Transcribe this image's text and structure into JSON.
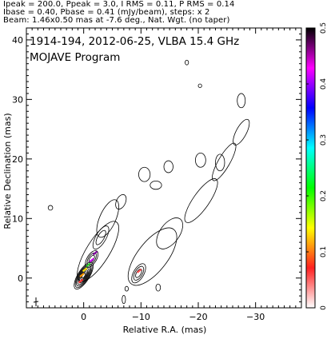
{
  "header": {
    "line1": "Ipeak = 200.0, Ppeak = 3.0, I RMS = 0.11, P RMS = 0.14",
    "line2": "Ibase = 0.40, Pbase = 0.41 (mJy/beam), steps: x 2",
    "line3": "Beam: 1.46x0.50 mas at -7.6 deg., Nat. Wgt. (no taper)"
  },
  "chart_data": {
    "type": "contour",
    "title": "1914-194, 2012-06-25, VLBA 15.4 GHz",
    "subtitle": "MOJAVE Program",
    "xlabel": "Relative R.A. (mas)",
    "ylabel": "Relative Declination (mas)",
    "xlim": [
      10,
      -38
    ],
    "ylim": [
      -5,
      42
    ],
    "x_reversed": true,
    "x_ticks": [
      0,
      -10,
      -20,
      -30
    ],
    "x_tick_labels": [
      "0",
      "−10",
      "−20",
      "−30"
    ],
    "y_ticks": [
      0,
      10,
      20,
      30,
      40
    ],
    "y_tick_labels": [
      "0",
      "10",
      "20",
      "30",
      "40"
    ],
    "colorbar": {
      "range": [
        0,
        0.5
      ],
      "ticks": [
        0,
        0.1,
        0.2,
        0.3,
        0.4,
        0.5
      ],
      "tick_labels": [
        "0",
        "0.1",
        "0.2",
        "0.3",
        "0.4",
        "0.5"
      ],
      "colors": [
        "#ffffff",
        "#ff2020",
        "#ffff00",
        "#00ff00",
        "#00ffff",
        "#0000ff",
        "#ff00ff",
        "#000000"
      ]
    },
    "stokes_i_base_mjy": 0.4,
    "contour_step": 2,
    "beam": {
      "major_mas": 1.46,
      "minor_mas": 0.5,
      "pa_deg": -7.6
    },
    "polarization_segments": [
      {
        "x": 0.5,
        "y": -0.5,
        "color": "#ff3030"
      },
      {
        "x": 0.3,
        "y": 0.5,
        "color": "#ff9a00"
      },
      {
        "x": -0.2,
        "y": 1.4,
        "color": "#ffe000"
      },
      {
        "x": -0.8,
        "y": 2.2,
        "color": "#30d030"
      },
      {
        "x": -1.4,
        "y": 3.0,
        "color": "#d400ff"
      },
      {
        "x": -2.0,
        "y": 4.2,
        "color": "#8000a0"
      },
      {
        "x": -9.7,
        "y": 1.2,
        "color": "#ff5050"
      }
    ],
    "contour_sets": [
      {
        "name": "core",
        "cx": 0.0,
        "cy": 0.4,
        "rx": 1.0,
        "ry": 2.6,
        "rot": 32,
        "levels": 8
      },
      {
        "name": "knot-a",
        "cx": -1.4,
        "cy": 3.2,
        "rx": 0.8,
        "ry": 1.6,
        "rot": 32,
        "levels": 3
      },
      {
        "name": "knot-b",
        "cx": -3.0,
        "cy": 6.8,
        "rx": 0.9,
        "ry": 2.2,
        "rot": 30,
        "levels": 2
      },
      {
        "name": "outer-left-jet",
        "cx": -2.5,
        "cy": 4.5,
        "rx": 2.0,
        "ry": 5.8,
        "rot": 32,
        "levels": 1
      },
      {
        "name": "left-plume",
        "cx": -4.2,
        "cy": 10.0,
        "rx": 1.4,
        "ry": 3.4,
        "rot": 24,
        "levels": 1
      },
      {
        "name": "left-upper",
        "cx": -6.5,
        "cy": 12.8,
        "rx": 0.8,
        "ry": 1.3,
        "rot": 25,
        "levels": 1
      },
      {
        "name": "right-core",
        "cx": -9.6,
        "cy": 0.8,
        "rx": 0.9,
        "ry": 1.8,
        "rot": 30,
        "levels": 3
      },
      {
        "name": "right-jet",
        "cx": -12.0,
        "cy": 3.6,
        "rx": 2.6,
        "ry": 5.8,
        "rot": 38,
        "levels": 1
      },
      {
        "name": "right-mid",
        "cx": -15.0,
        "cy": 7.5,
        "rx": 1.7,
        "ry": 3.0,
        "rot": 36,
        "levels": 1
      },
      {
        "name": "right-long",
        "cx": -20.5,
        "cy": 13.0,
        "rx": 1.4,
        "ry": 4.4,
        "rot": 35,
        "levels": 1
      },
      {
        "name": "right-upper",
        "cx": -24.5,
        "cy": 19.5,
        "rx": 1.0,
        "ry": 3.6,
        "rot": 30,
        "levels": 1
      },
      {
        "name": "right-top",
        "cx": -27.5,
        "cy": 24.5,
        "rx": 0.9,
        "ry": 2.4,
        "rot": 28,
        "levels": 1
      },
      {
        "name": "cloud-1",
        "cx": -10.6,
        "cy": 17.4,
        "rx": 1.0,
        "ry": 1.2,
        "rot": 0,
        "levels": 1
      },
      {
        "name": "cloud-2",
        "cx": -12.6,
        "cy": 15.6,
        "rx": 1.0,
        "ry": 0.7,
        "rot": 0,
        "levels": 1
      },
      {
        "name": "cloud-3",
        "cx": -14.8,
        "cy": 18.7,
        "rx": 0.8,
        "ry": 1.0,
        "rot": 0,
        "levels": 1
      },
      {
        "name": "cloud-4",
        "cx": -20.4,
        "cy": 19.8,
        "rx": 0.9,
        "ry": 1.2,
        "rot": 0,
        "levels": 1
      },
      {
        "name": "cloud-5",
        "cx": -23.8,
        "cy": 19.4,
        "rx": 0.8,
        "ry": 1.4,
        "rot": 0,
        "levels": 1
      },
      {
        "name": "cloud-6",
        "cx": -27.5,
        "cy": 29.8,
        "rx": 0.7,
        "ry": 1.2,
        "rot": 0,
        "levels": 1
      },
      {
        "name": "blob-bl-1",
        "cx": -13.0,
        "cy": -1.6,
        "rx": 0.4,
        "ry": 0.6,
        "rot": 0,
        "levels": 1
      },
      {
        "name": "blob-bl-2",
        "cx": -7.0,
        "cy": -3.6,
        "rx": 0.3,
        "ry": 0.7,
        "rot": 0,
        "levels": 1
      },
      {
        "name": "blob-bl-3",
        "cx": -7.5,
        "cy": -1.8,
        "rx": 0.3,
        "ry": 0.4,
        "rot": 0,
        "levels": 1
      },
      {
        "name": "blob-left",
        "cx": 5.8,
        "cy": 11.8,
        "rx": 0.4,
        "ry": 0.4,
        "rot": 0,
        "levels": 1
      },
      {
        "name": "blob-top",
        "cx": -18.0,
        "cy": 36.2,
        "rx": 0.3,
        "ry": 0.4,
        "rot": 0,
        "levels": 1
      },
      {
        "name": "blob-top-2",
        "cx": -20.3,
        "cy": 32.3,
        "rx": 0.3,
        "ry": 0.3,
        "rot": 0,
        "levels": 1
      }
    ]
  }
}
